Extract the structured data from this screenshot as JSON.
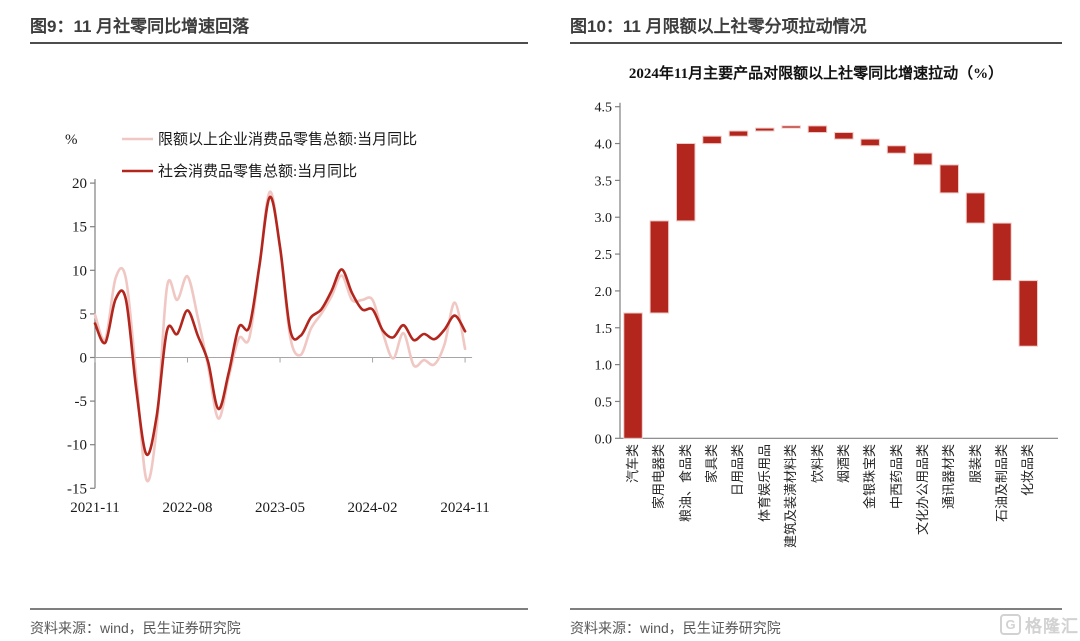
{
  "left_panel": {
    "title": "图9：11 月社零同比增速回落",
    "source": "资料来源：wind，民生证券研究院"
  },
  "right_panel": {
    "title": "图10：11 月限额以上社零分项拉动情况",
    "source": "资料来源：wind，民生证券研究院"
  },
  "watermark": {
    "logo_letter": "G",
    "logo_text": "格隆汇"
  },
  "colors": {
    "series_pink": "#f0c7c3",
    "series_red": "#b2261d",
    "bar_fill": "#b2261d",
    "bar_stroke": "#f0cac5",
    "axis": "#808080",
    "zero_line": "#a6a6a6",
    "tick_text": "#1a1a1a",
    "title_text": "#3d3d3d",
    "source_text": "#595959",
    "watermark": "#d2d2d2"
  },
  "chart_data": [
    {
      "type": "line",
      "title": "",
      "ylabel": "%",
      "grid": false,
      "legend_position": "top-left",
      "ylim": [
        -15,
        20
      ],
      "yticks": [
        20,
        15,
        10,
        5,
        0,
        -5,
        -10,
        -15
      ],
      "x_tick_labels": [
        "2021-11",
        "2022-08",
        "2023-05",
        "2024-02",
        "2024-11"
      ],
      "x": [
        "2021-11",
        "2021-12",
        "2022-01",
        "2022-02",
        "2022-03",
        "2022-04",
        "2022-05",
        "2022-06",
        "2022-07",
        "2022-08",
        "2022-09",
        "2022-10",
        "2022-11",
        "2022-12",
        "2023-01",
        "2023-02",
        "2023-03",
        "2023-04",
        "2023-05",
        "2023-06",
        "2023-07",
        "2023-08",
        "2023-09",
        "2023-10",
        "2023-11",
        "2023-12",
        "2024-01",
        "2024-02",
        "2024-03",
        "2024-04",
        "2024-05",
        "2024-06",
        "2024-07",
        "2024-08",
        "2024-09",
        "2024-10",
        "2024-11"
      ],
      "series": [
        {
          "name": "限额以上企业消费品零售总额:当月同比",
          "color": "#f0c7c3",
          "values": [
            4.9,
            2.1,
            9.1,
            9.1,
            -2.0,
            -14.0,
            -8.0,
            8.1,
            6.6,
            9.3,
            4.6,
            -1.0,
            -7.0,
            -2.3,
            2.2,
            2.2,
            10.5,
            19.0,
            12.5,
            2.3,
            0.3,
            3.3,
            5.0,
            7.0,
            9.4,
            6.6,
            6.6,
            6.6,
            2.8,
            -0.1,
            2.8,
            -0.9,
            -0.3,
            -0.8,
            1.5,
            6.3,
            1.0
          ]
        },
        {
          "name": "社会消费品零售总额:当月同比",
          "color": "#b2261d",
          "values": [
            3.9,
            1.7,
            6.7,
            6.7,
            -3.5,
            -11.1,
            -6.7,
            3.1,
            2.7,
            5.4,
            2.5,
            -0.5,
            -5.9,
            -1.8,
            3.5,
            3.5,
            10.6,
            18.4,
            12.7,
            3.1,
            2.5,
            4.6,
            5.5,
            7.6,
            10.1,
            7.4,
            5.5,
            5.5,
            3.1,
            2.3,
            3.7,
            2.0,
            2.7,
            2.1,
            3.2,
            4.8,
            3.0
          ]
        }
      ]
    },
    {
      "type": "bar",
      "subtype": "waterfall",
      "title": "2024年11月主要产品对限额以上社零同比增速拉动（%）",
      "grid": false,
      "ylim": [
        0,
        4.5
      ],
      "yticks": [
        4.5,
        4.0,
        3.5,
        3.0,
        2.5,
        2.0,
        1.5,
        1.0,
        0.5,
        0.0
      ],
      "categories": [
        "汽车类",
        "家用电器类",
        "粮油、食品类",
        "家具类",
        "日用品类",
        "体育娱乐用品",
        "建筑及装潢材料类",
        "饮料类",
        "烟酒类",
        "金银珠宝类",
        "中西药品类",
        "文化办公用品类",
        "通讯器材类",
        "服装类",
        "石油及制品类",
        "化妆品类"
      ],
      "segments": [
        [
          0,
          1.7
        ],
        [
          1.7,
          2.95
        ],
        [
          2.95,
          4.0
        ],
        [
          4.0,
          4.1
        ],
        [
          4.1,
          4.17
        ],
        [
          4.17,
          4.21
        ],
        [
          4.21,
          4.24
        ],
        [
          4.24,
          4.15
        ],
        [
          4.15,
          4.06
        ],
        [
          4.06,
          3.97
        ],
        [
          3.97,
          3.87
        ],
        [
          3.87,
          3.71
        ],
        [
          3.71,
          3.33
        ],
        [
          3.33,
          2.92
        ],
        [
          2.92,
          2.14
        ],
        [
          2.14,
          1.25
        ]
      ]
    }
  ]
}
